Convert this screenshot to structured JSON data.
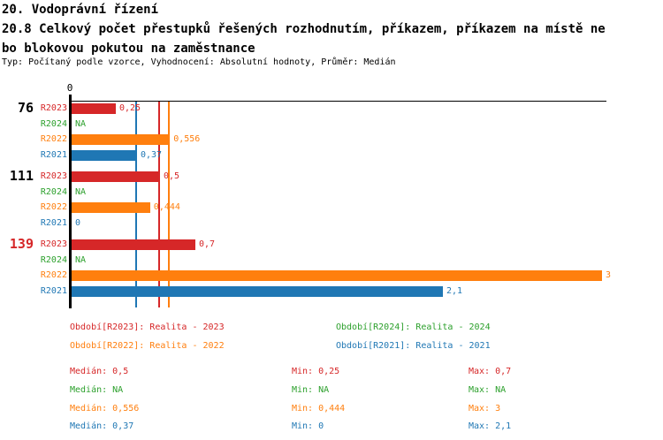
{
  "header": {
    "title_line1": "20. Vodoprávní řízení",
    "title_line2": "20.8 Celkový počet přestupků řešených rozhodnutím, příkazem, příkazem na místě ne",
    "title_line3": "bo blokovou pokutou na zaměstnance",
    "meta": "Typ: Počítaný podle vzorce, Vyhodnocení: Absolutní hodnoty, Průměr: Medián"
  },
  "colors": {
    "R2023": "#d62728",
    "R2024": "#2ca02c",
    "R2022": "#ff7f0e",
    "R2021": "#1f77b4",
    "axis": "#000000",
    "group_label_default": "#000000",
    "group_label_highlight": "#d62728"
  },
  "chart_data": {
    "type": "bar",
    "orientation": "horizontal",
    "x_axis": {
      "origin_tick_label": "0",
      "xlim": [
        0,
        3.03
      ],
      "ticks_shown": [
        "0"
      ]
    },
    "series": [
      "R2023",
      "R2024",
      "R2022",
      "R2021"
    ],
    "groups": [
      {
        "label": "76",
        "highlight": false,
        "bars": [
          {
            "series": "R2023",
            "value": 0.25,
            "display": "0,25"
          },
          {
            "series": "R2024",
            "value": null,
            "display": "NA"
          },
          {
            "series": "R2022",
            "value": 0.556,
            "display": "0,556"
          },
          {
            "series": "R2021",
            "value": 0.37,
            "display": "0,37"
          }
        ]
      },
      {
        "label": "111",
        "highlight": false,
        "bars": [
          {
            "series": "R2023",
            "value": 0.5,
            "display": "0,5"
          },
          {
            "series": "R2024",
            "value": null,
            "display": "NA"
          },
          {
            "series": "R2022",
            "value": 0.444,
            "display": "0,444"
          },
          {
            "series": "R2021",
            "value": 0,
            "display": "0"
          }
        ]
      },
      {
        "label": "139",
        "highlight": true,
        "bars": [
          {
            "series": "R2023",
            "value": 0.7,
            "display": "0,7"
          },
          {
            "series": "R2024",
            "value": null,
            "display": "NA"
          },
          {
            "series": "R2022",
            "value": 3,
            "display": "3"
          },
          {
            "series": "R2021",
            "value": 2.1,
            "display": "2,1"
          }
        ]
      }
    ],
    "median_lines": [
      {
        "series": "R2021",
        "value": 0.37
      },
      {
        "series": "R2023",
        "value": 0.5
      },
      {
        "series": "R2022",
        "value": 0.556
      }
    ]
  },
  "legend": {
    "items": [
      {
        "series": "R2023",
        "text": "Období[R2023]: Realita - 2023"
      },
      {
        "series": "R2024",
        "text": "Období[R2024]: Realita - 2024"
      },
      {
        "series": "R2022",
        "text": "Období[R2022]: Realita - 2022"
      },
      {
        "series": "R2021",
        "text": "Období[R2021]: Realita - 2021"
      }
    ]
  },
  "stats": {
    "rows": [
      {
        "series": "R2023",
        "median": "Medián: 0,5",
        "min": "Min: 0,25",
        "max": "Max: 0,7"
      },
      {
        "series": "R2024",
        "median": "Medián: NA",
        "min": "Min: NA",
        "max": "Max: NA"
      },
      {
        "series": "R2022",
        "median": "Medián: 0,556",
        "min": "Min: 0,444",
        "max": "Max: 3"
      },
      {
        "series": "R2021",
        "median": "Medián: 0,37",
        "min": "Min: 0",
        "max": "Max: 2,1"
      }
    ]
  }
}
